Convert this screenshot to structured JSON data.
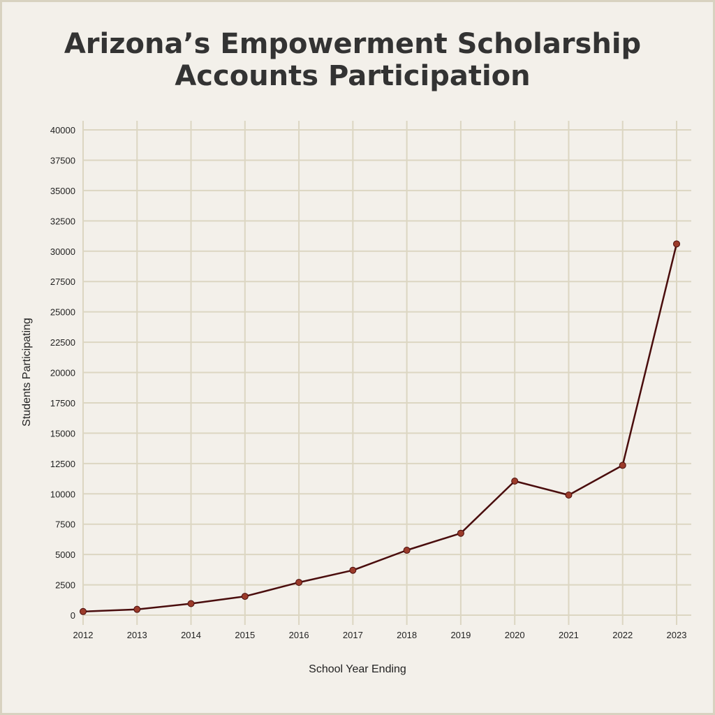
{
  "chart_data": {
    "type": "line",
    "title_lines": [
      "Arizona’s Empowerment Scholarship",
      "Accounts Participation"
    ],
    "xlabel": "School Year Ending",
    "ylabel": "Students Participating",
    "categories": [
      "2012",
      "2013",
      "2014",
      "2015",
      "2016",
      "2017",
      "2018",
      "2019",
      "2020",
      "2021",
      "2022",
      "2023"
    ],
    "series": [
      {
        "values": [
          300,
          480,
          950,
          1550,
          2700,
          3700,
          5350,
          6750,
          11050,
          9900,
          12350,
          30600
        ]
      }
    ],
    "ylim": [
      0,
      40000
    ],
    "yticks": [
      "0",
      "2500",
      "5000",
      "7500",
      "10000",
      "12500",
      "15000",
      "17500",
      "20000",
      "22500",
      "25000",
      "27500",
      "30000",
      "32500",
      "35000",
      "37500",
      "40000"
    ],
    "grid": true,
    "colors": {
      "line": "#4a0d0d",
      "marker": "#9b3b2a",
      "grid": "#dcd6c2",
      "background": "#f3f0ea"
    }
  }
}
